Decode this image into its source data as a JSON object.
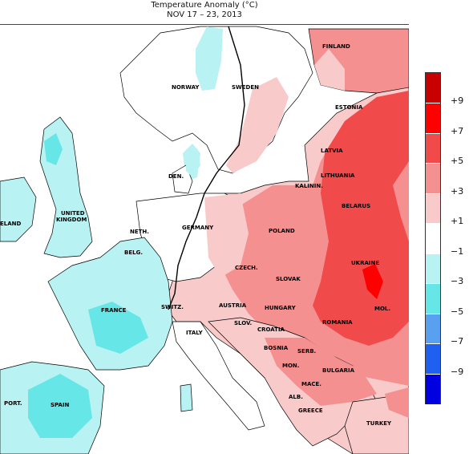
{
  "title": {
    "line1": "Temperature Anomaly (°C)",
    "line2": "NOV 17 – 23, 2013"
  },
  "legend": {
    "ticks": [
      "+9",
      "+7",
      "+5",
      "+3",
      "+1",
      "−1",
      "−3",
      "−5",
      "−7",
      "−9"
    ],
    "colors": [
      "#c80000",
      "#ff0000",
      "#f04a4a",
      "#f49090",
      "#f9caca",
      "#ffffff",
      "#b8f2f2",
      "#66e6e6",
      "#5aa0f0",
      "#2060f0",
      "#0000e0"
    ]
  },
  "countries": {
    "finland": "FINLAND",
    "norway": "NORWAY",
    "sweden": "SWEDEN",
    "estonia": "ESTONIA",
    "latvia": "LATVIA",
    "lithuania": "LITHUANIA",
    "kalinin": "KALININ.",
    "belarus": "BELARUS",
    "den": "DEN.",
    "united": "UNITED",
    "kingdom": "KINGDOM",
    "ireland": "ELAND",
    "neth": "NETH.",
    "germany": "GERMANY",
    "poland": "POLAND",
    "belg": "BELG.",
    "czech": "CZECH.",
    "slovak": "SLOVAK",
    "ukraine": "UKRAINE",
    "france": "FRANCE",
    "switz": "SWITZ.",
    "austria": "AUSTRIA",
    "hungary": "HUNGARY",
    "mol": "MOL.",
    "slov": "SLOV.",
    "croatia": "CROATIA",
    "romania": "ROMANIA",
    "italy": "ITALY",
    "bosnia": "BOSNIA",
    "serb": "SERB.",
    "mon": "MON.",
    "bulgaria": "BULGARIA",
    "mace": "MACE.",
    "port": "PORT.",
    "spain": "SPAIN",
    "alb": "ALB.",
    "greece": "GREECE",
    "turkey": "TURKEY"
  }
}
